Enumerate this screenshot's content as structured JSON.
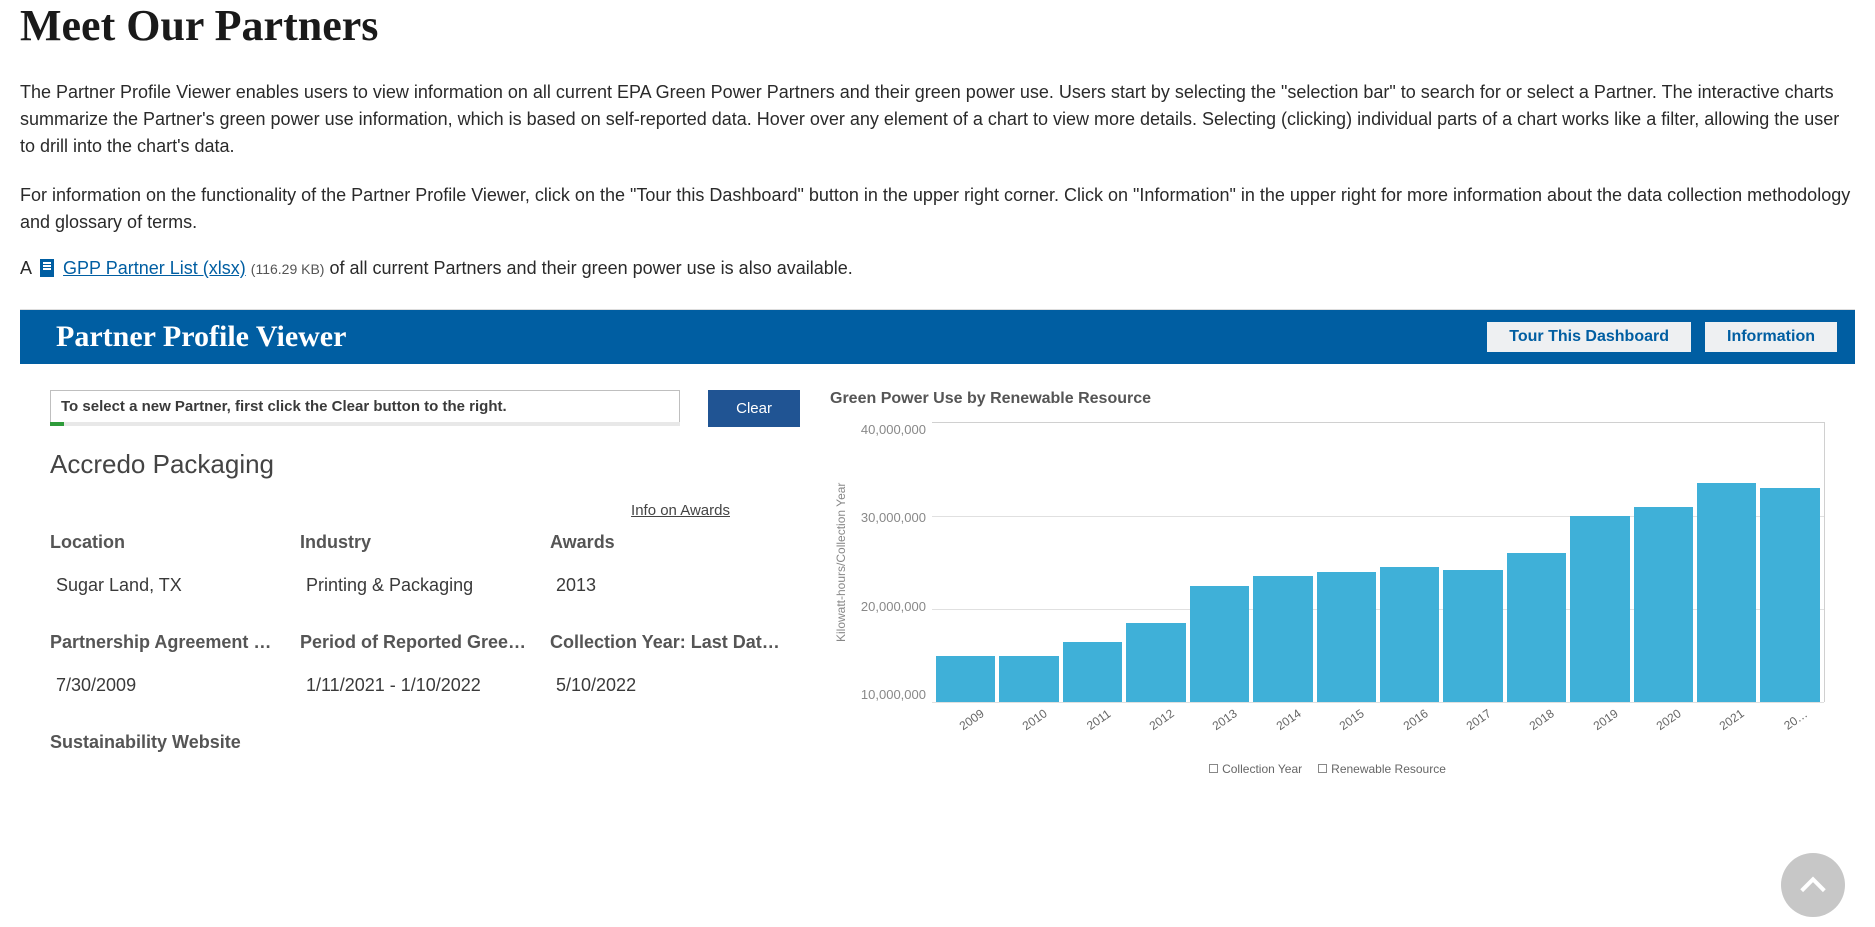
{
  "page": {
    "title": "Meet Our Partners",
    "paragraph1": "The Partner Profile Viewer enables users to view information on all current EPA Green Power Partners and their green power use. Users start by selecting the \"selection bar\" to search for or select a Partner. The interactive charts summarize the Partner's green power use information, which is based on self-reported data. Hover over any element of a chart to view more details. Selecting (clicking) individual parts of a chart works like a filter, allowing the user to drill into the chart's data.",
    "paragraph2": "For information on the functionality of the Partner Profile Viewer, click on the \"Tour this Dashboard\" button in the upper right corner. Click on \"Information\" in the upper right for more information about the data collection methodology and glossary of terms.",
    "file_prefix": "A",
    "file_link_text": "GPP Partner List (xlsx)",
    "file_size": "(116.29 KB)",
    "file_suffix": " of all current Partners and their green power use is also available."
  },
  "viewer": {
    "title": "Partner Profile Viewer",
    "tour_btn": "Tour This Dashboard",
    "info_btn": "Information",
    "selector_text": "To select a new Partner, first click the Clear button to the right.",
    "clear_btn": "Clear",
    "partner_name": "Accredo Packaging",
    "info_on_awards": "Info on Awards",
    "fields": {
      "location_label": "Location",
      "location_value": "Sugar Land, TX",
      "industry_label": "Industry",
      "industry_value": "Printing & Packaging",
      "awards_label": "Awards",
      "awards_value": "2013",
      "partnership_label": "Partnership Agreement Si…",
      "partnership_value": "7/30/2009",
      "period_label": "Period of Reported Green …",
      "period_value": "1/11/2021 - 1/10/2022",
      "collection_label": "Collection Year: Last Data …",
      "collection_value": "5/10/2022",
      "sustainability_label": "Sustainability Website"
    }
  },
  "chart": {
    "title": "Green Power Use by Renewable Resource",
    "type": "bar",
    "y_axis_label": "Kilowatt-hours/Collection Year",
    "y_ticks": [
      "40,000,000",
      "30,000,000",
      "20,000,000",
      "10,000,000"
    ],
    "y_min": 10000000,
    "y_max": 40000000,
    "categories": [
      "2009",
      "2010",
      "2011",
      "2012",
      "2013",
      "2014",
      "2015",
      "2016",
      "2017",
      "2018",
      "2019",
      "2020",
      "2021",
      "20…"
    ],
    "values": [
      15000000,
      15000000,
      16500000,
      18500000,
      22500000,
      23500000,
      24000000,
      24500000,
      24200000,
      26000000,
      30000000,
      31000000,
      33500000,
      33000000
    ],
    "bar_color": "#3fb0d8",
    "grid_color": "#e0e0e0",
    "background_color": "#ffffff",
    "legend_items": [
      "Collection Year",
      "Renewable Resource"
    ]
  }
}
